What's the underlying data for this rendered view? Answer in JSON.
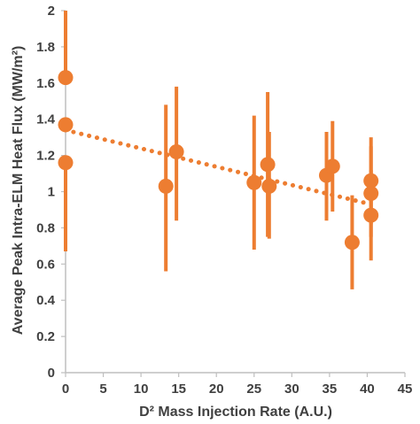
{
  "chart_data": {
    "type": "scatter",
    "xlabel": "D² Mass Injection Rate (A.U.)",
    "ylabel": "Average Peak Intra-ELM Heat Flux (MW/m²)",
    "xlim": [
      0,
      45
    ],
    "ylim": [
      0,
      2
    ],
    "xticks": [
      0,
      5,
      10,
      15,
      20,
      25,
      30,
      35,
      40,
      45
    ],
    "yticks": [
      0,
      0.2,
      0.4,
      0.6,
      0.8,
      1,
      1.2,
      1.4,
      1.6,
      1.8,
      2
    ],
    "ytick_labels": [
      "0",
      "0.2",
      "0.4",
      "0.6",
      "0.8",
      "1",
      "1.2",
      "1.4",
      "1.6",
      "1.8",
      "2"
    ],
    "grid": false,
    "legend": false,
    "color": "#ED7D31",
    "series": [
      {
        "points": [
          {
            "x": 0.0,
            "y": 1.63,
            "err_low": 1.63,
            "err_high": 2.0
          },
          {
            "x": 0.0,
            "y": 1.37,
            "err_low": 1.37,
            "err_high": 1.37
          },
          {
            "x": 0.0,
            "y": 1.16,
            "err_low": 0.67,
            "err_high": 1.16
          },
          {
            "x": 13.3,
            "y": 1.03,
            "err_low": 0.56,
            "err_high": 1.48
          },
          {
            "x": 14.7,
            "y": 1.22,
            "err_low": 0.84,
            "err_high": 1.58
          },
          {
            "x": 25.0,
            "y": 1.05,
            "err_low": 0.68,
            "err_high": 1.42
          },
          {
            "x": 26.8,
            "y": 1.15,
            "err_low": 0.75,
            "err_high": 1.55
          },
          {
            "x": 27.0,
            "y": 1.03,
            "err_low": 0.74,
            "err_high": 1.33
          },
          {
            "x": 34.6,
            "y": 1.09,
            "err_low": 0.84,
            "err_high": 1.33
          },
          {
            "x": 35.4,
            "y": 1.14,
            "err_low": 0.89,
            "err_high": 1.39
          },
          {
            "x": 38.0,
            "y": 0.72,
            "err_low": 0.46,
            "err_high": 0.98
          },
          {
            "x": 40.5,
            "y": 1.06,
            "err_low": 0.82,
            "err_high": 1.3
          },
          {
            "x": 40.5,
            "y": 0.99,
            "err_low": 0.75,
            "err_high": 1.25
          },
          {
            "x": 40.5,
            "y": 0.87,
            "err_low": 0.62,
            "err_high": 1.12
          }
        ]
      }
    ],
    "trendline": {
      "x": [
        0,
        40.5
      ],
      "y": [
        1.34,
        0.93
      ],
      "style": "dotted"
    }
  }
}
